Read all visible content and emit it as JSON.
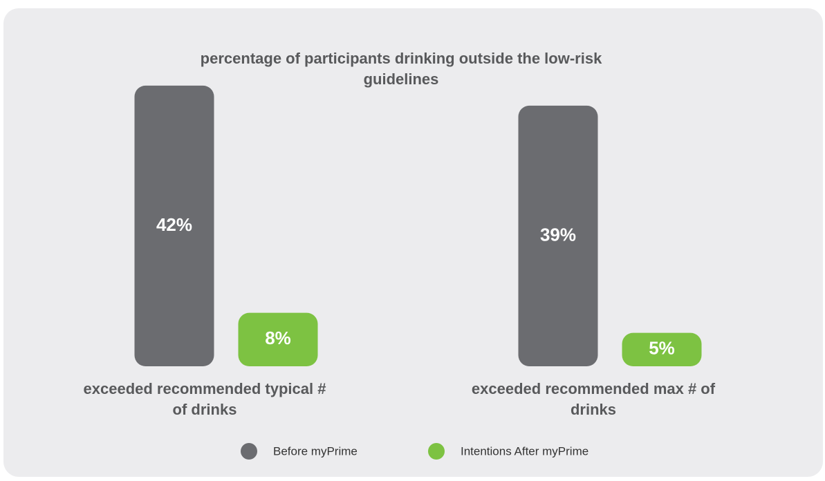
{
  "chart_data": {
    "type": "bar",
    "title": "percentage of participants drinking outside the low-risk guidelines",
    "categories": [
      "exceeded recommended typical # of drinks",
      "exceeded recommended max # of drinks"
    ],
    "series": [
      {
        "name": "Before myPrime",
        "color": "#6b6c70",
        "values": [
          42,
          39
        ],
        "value_labels": [
          "42%",
          "39%"
        ]
      },
      {
        "name": "Intentions After myPrime",
        "color": "#7dc242",
        "values": [
          8,
          5
        ],
        "value_labels": [
          "8%",
          "5%"
        ]
      }
    ],
    "legend": "bottom"
  }
}
